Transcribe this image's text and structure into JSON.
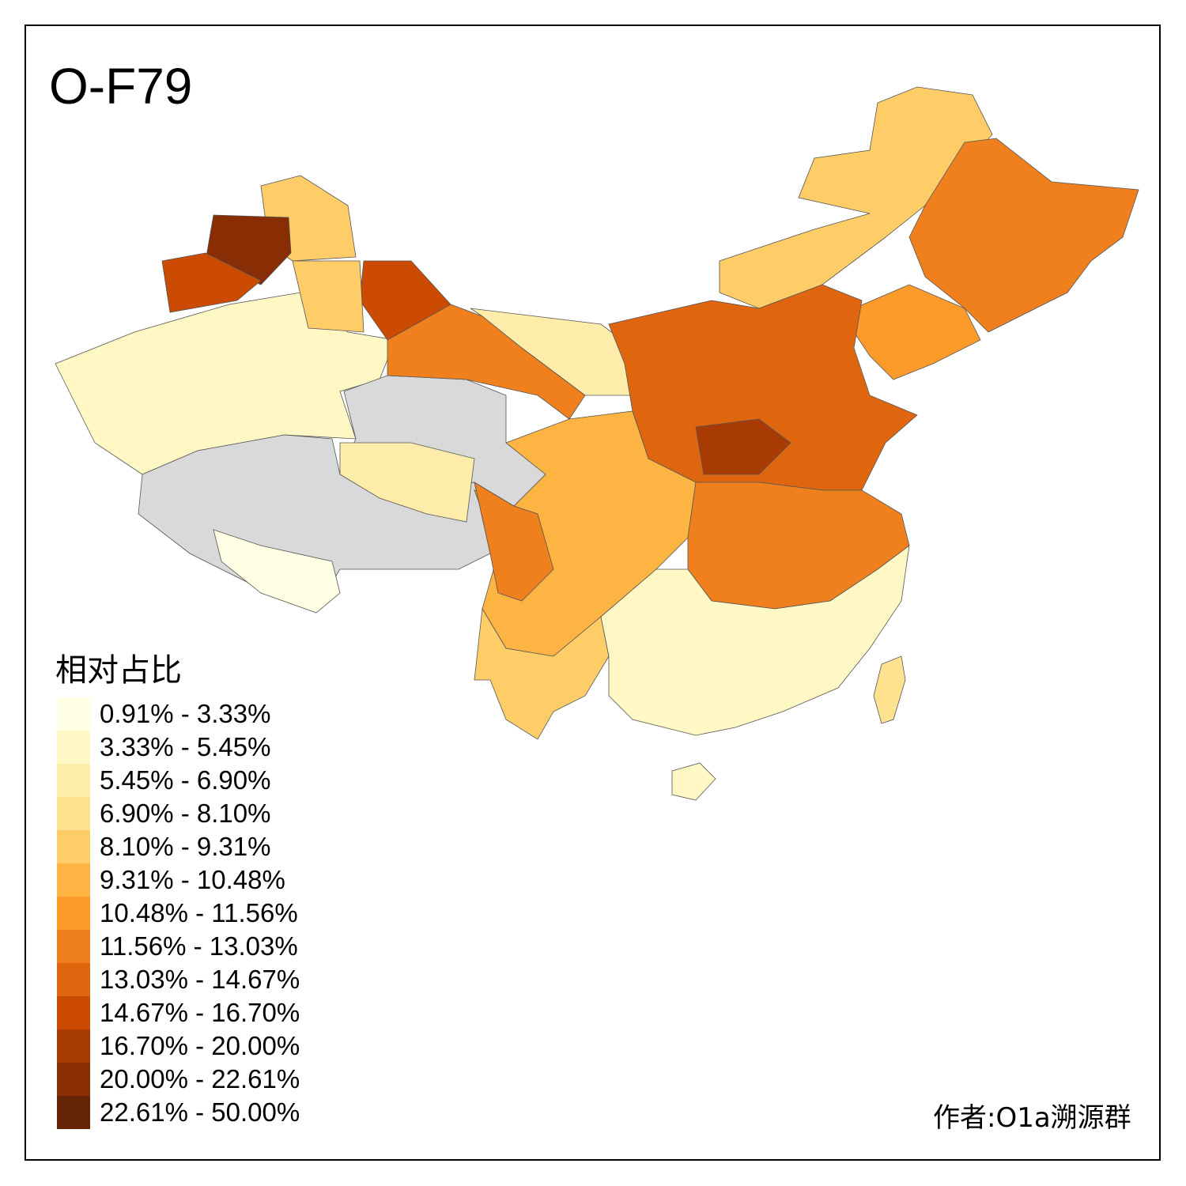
{
  "title": "O-F79",
  "legend": {
    "title": "相对占比",
    "items": [
      {
        "label": "0.91% - 3.33%",
        "color": "#FFFFE5"
      },
      {
        "label": "3.33% - 5.45%",
        "color": "#FFF7C4"
      },
      {
        "label": "5.45% - 6.90%",
        "color": "#FEEDAA"
      },
      {
        "label": "6.90% - 8.10%",
        "color": "#FEE290"
      },
      {
        "label": "8.10% - 9.31%",
        "color": "#FECD68"
      },
      {
        "label": "9.31% - 10.48%",
        "color": "#FDB443"
      },
      {
        "label": "10.48% - 11.56%",
        "color": "#FC9A2A"
      },
      {
        "label": "11.56% - 13.03%",
        "color": "#F0801E"
      },
      {
        "label": "13.03% - 14.67%",
        "color": "#E0650F"
      },
      {
        "label": "14.67% - 16.70%",
        "color": "#CB4B02"
      },
      {
        "label": "16.70% - 20.00%",
        "color": "#A83B03"
      },
      {
        "label": "20.00% - 22.61%",
        "color": "#882D04"
      },
      {
        "label": "22.61% - 50.00%",
        "color": "#662506"
      }
    ],
    "no_data_color": "#D9D9D9"
  },
  "author": "作者:O1a溯源群"
}
